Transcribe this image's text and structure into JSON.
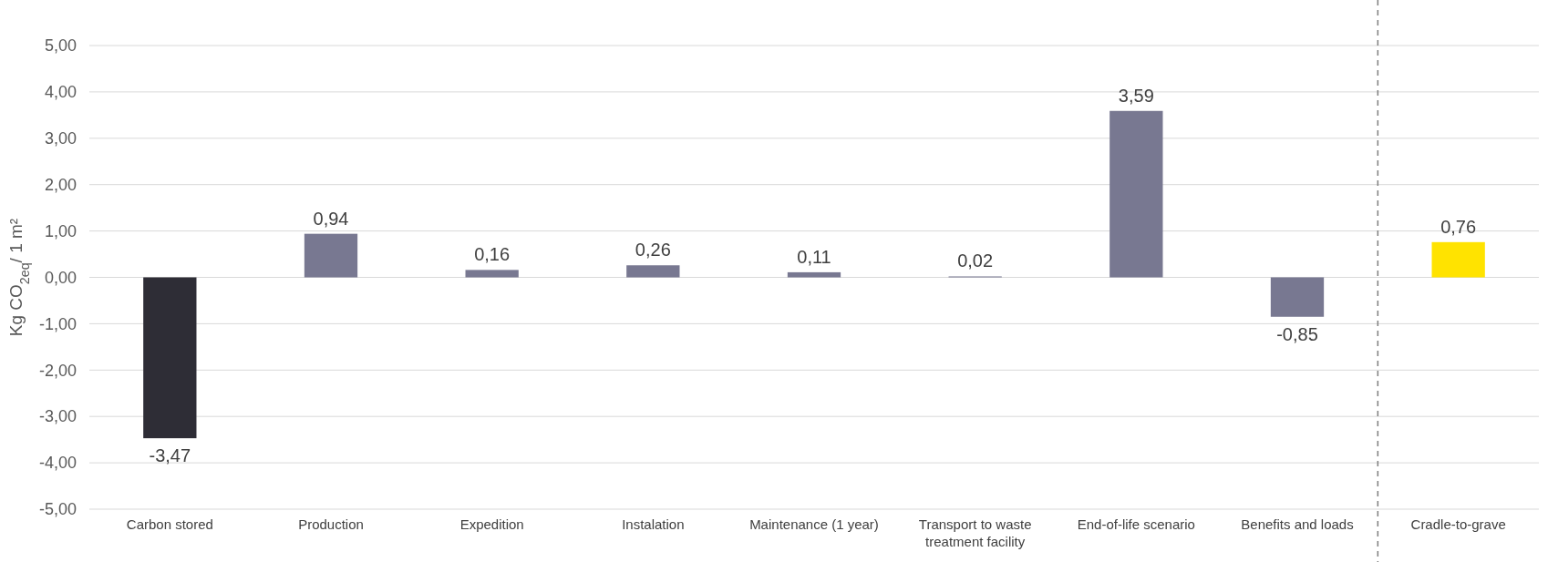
{
  "chart_data": {
    "type": "bar",
    "ylabel": "Kg CO$_{2eq}$/ 1 m²",
    "categories": [
      "Carbon stored",
      "Production",
      "Expedition",
      "Instalation",
      "Maintenance (1 year)",
      "Transport to waste treatment facility",
      "End-of-life scenario",
      "Benefits and loads",
      "Cradle-to-grave"
    ],
    "values": [
      -3.47,
      0.94,
      0.16,
      0.26,
      0.11,
      0.02,
      3.59,
      -0.85,
      0.76
    ],
    "colors": [
      "#2e2d36",
      "#787891",
      "#787891",
      "#787891",
      "#787891",
      "#787891",
      "#787891",
      "#787891",
      "#ffe300"
    ],
    "value_labels": [
      "-3,47",
      "0,94",
      "0,16",
      "0,26",
      "0,11",
      "0,02",
      "3,59",
      "-0,85",
      "0,76"
    ],
    "ylim": [
      -5,
      5
    ],
    "yticks": [
      {
        "value": -5,
        "label": "-5,00"
      },
      {
        "value": -4,
        "label": "-4,00"
      },
      {
        "value": -3,
        "label": "-3,00"
      },
      {
        "value": -2,
        "label": "-2,00"
      },
      {
        "value": -1,
        "label": "-1,00"
      },
      {
        "value": 0,
        "label": "0,00"
      },
      {
        "value": 1,
        "label": "1,00"
      },
      {
        "value": 2,
        "label": "2,00"
      },
      {
        "value": 3,
        "label": "3,00"
      },
      {
        "value": 4,
        "label": "4,00"
      },
      {
        "value": 5,
        "label": "5,00"
      }
    ],
    "grid": "y",
    "ref_lines": [
      {
        "axis": "x",
        "value": "Cradle-to-grave",
        "color": "#7f7f7f",
        "line_style": "dashed"
      }
    ]
  }
}
